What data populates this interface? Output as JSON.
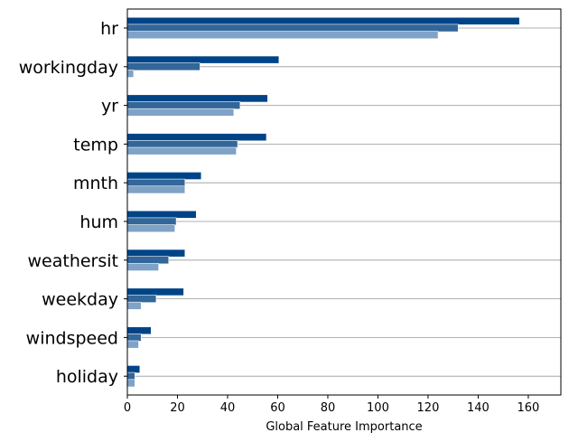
{
  "chart_data": {
    "type": "bar",
    "orientation": "horizontal",
    "title": "",
    "xlabel": "Global Feature Importance",
    "ylabel": "",
    "xlim": [
      0,
      173
    ],
    "xticks": [
      0,
      20,
      40,
      60,
      80,
      100,
      120,
      140,
      160
    ],
    "grid": "horizontal lines at categories",
    "legend": "none",
    "categories": [
      "hr",
      "workingday",
      "yr",
      "temp",
      "mnth",
      "hum",
      "weathersit",
      "weekday",
      "windspeed",
      "holiday"
    ],
    "series": [
      {
        "color": "#004488",
        "values": [
          156.5,
          60.5,
          56.0,
          55.5,
          29.5,
          27.5,
          23.0,
          22.5,
          9.5,
          5.0
        ]
      },
      {
        "color": "#336699",
        "values": [
          132.0,
          29.0,
          45.0,
          44.0,
          23.0,
          19.5,
          16.5,
          11.5,
          5.5,
          3.0
        ]
      },
      {
        "color": "#7fa2c7",
        "values": [
          124.0,
          2.5,
          42.5,
          43.5,
          23.0,
          19.0,
          12.5,
          5.5,
          4.5,
          3.0
        ]
      }
    ]
  }
}
